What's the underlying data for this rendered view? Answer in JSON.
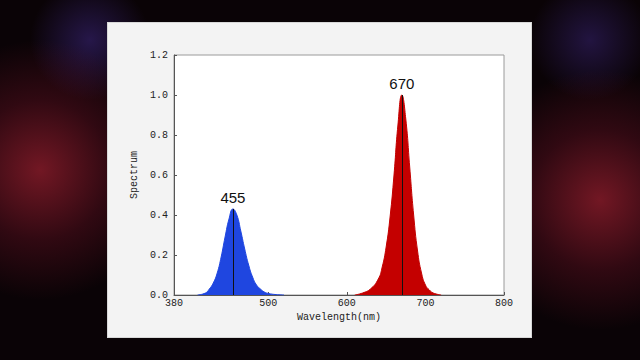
{
  "chart_data": {
    "type": "area",
    "x_label": "Wavelength(nm)",
    "y_label": "Spectrum",
    "xlim": [
      380,
      800
    ],
    "xticks": [
      380,
      500,
      600,
      700,
      800
    ],
    "ylim": [
      0,
      1.2
    ],
    "yticks": [
      {
        "value": 0,
        "label": "0.0"
      },
      0.2,
      0.4,
      0.6,
      0.8,
      {
        "value": 1,
        "label": "1.0"
      },
      1.2
    ],
    "grid": false,
    "series": [
      {
        "color": "#1f46e0",
        "x": [
          410,
          420,
          425,
          430,
          435,
          440,
          445,
          450,
          455,
          460,
          465,
          470,
          475,
          480,
          485,
          490,
          495,
          500,
          510,
          520
        ],
        "values": [
          0,
          0.01,
          0.03,
          0.06,
          0.11,
          0.19,
          0.29,
          0.38,
          0.43,
          0.4,
          0.32,
          0.23,
          0.15,
          0.09,
          0.05,
          0.03,
          0.015,
          0.008,
          0.002,
          0
        ]
      },
      {
        "color": "#c40000",
        "x": [
          610,
          620,
          630,
          640,
          645,
          650,
          655,
          660,
          665,
          670,
          675,
          680,
          685,
          690,
          695,
          700,
          705,
          710,
          720
        ],
        "values": [
          0,
          0.01,
          0.03,
          0.08,
          0.14,
          0.24,
          0.39,
          0.6,
          0.85,
          1,
          0.88,
          0.64,
          0.4,
          0.22,
          0.11,
          0.05,
          0.025,
          0.01,
          0
        ]
      }
    ],
    "annotations": [
      {
        "text": "455",
        "x": 455,
        "y": 0.43
      },
      {
        "text": "670",
        "x": 670,
        "y": 1
      }
    ]
  }
}
